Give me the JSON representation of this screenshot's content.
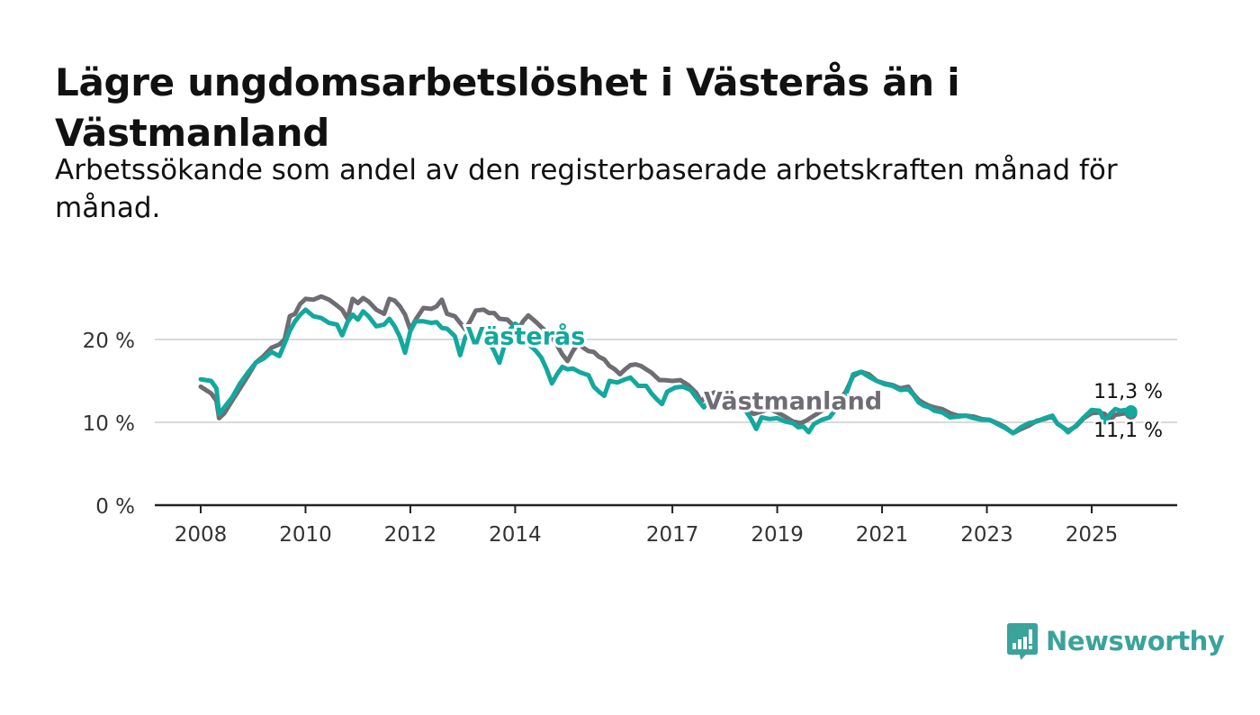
{
  "title": "Lägre ungdomsarbetslöshet i Västerås än i Västmanland",
  "subtitle": "Arbetssökande som andel av den registerbaserade arbetskraften månad för månad.",
  "brand": {
    "name": "Newsworthy",
    "color": "#3aa39b",
    "logo_icon": "bar-chart-speech-bubble-icon"
  },
  "chart_data": {
    "type": "line",
    "x_range": [
      2008,
      2026
    ],
    "ylim": [
      0,
      25
    ],
    "y_ticks": [
      {
        "value": 0,
        "label": "0 %"
      },
      {
        "value": 10,
        "label": "10 %"
      },
      {
        "value": 20,
        "label": "20 %"
      }
    ],
    "x_ticks": [
      {
        "value": 2008,
        "label": "2008"
      },
      {
        "value": 2010,
        "label": "2010"
      },
      {
        "value": 2012,
        "label": "2012"
      },
      {
        "value": 2014,
        "label": "2014"
      },
      {
        "value": 2017,
        "label": "2017"
      },
      {
        "value": 2019,
        "label": "2019"
      },
      {
        "value": 2021,
        "label": "2021"
      },
      {
        "value": 2023,
        "label": "2023"
      },
      {
        "value": 2025,
        "label": "2025"
      }
    ],
    "grid": true,
    "series": [
      {
        "name": "Västmanland",
        "color": "#6f6d73",
        "end_label": "11,1 %",
        "points": [
          [
            2008.0,
            14.3
          ],
          [
            2008.1,
            13.9
          ],
          [
            2008.2,
            13.5
          ],
          [
            2008.3,
            12.6
          ],
          [
            2008.35,
            10.5
          ],
          [
            2008.45,
            11.1
          ],
          [
            2008.6,
            12.6
          ],
          [
            2008.75,
            14.1
          ],
          [
            2008.9,
            15.6
          ],
          [
            2009.05,
            17.2
          ],
          [
            2009.2,
            18.0
          ],
          [
            2009.35,
            19.0
          ],
          [
            2009.5,
            19.4
          ],
          [
            2009.6,
            20.0
          ],
          [
            2009.7,
            22.8
          ],
          [
            2009.8,
            23.1
          ],
          [
            2009.9,
            24.3
          ],
          [
            2010.0,
            24.9
          ],
          [
            2010.15,
            24.8
          ],
          [
            2010.3,
            25.2
          ],
          [
            2010.45,
            24.8
          ],
          [
            2010.6,
            24.1
          ],
          [
            2010.7,
            23.6
          ],
          [
            2010.8,
            22.5
          ],
          [
            2010.9,
            24.9
          ],
          [
            2011.0,
            24.4
          ],
          [
            2011.1,
            25.0
          ],
          [
            2011.2,
            24.6
          ],
          [
            2011.35,
            23.6
          ],
          [
            2011.5,
            23.1
          ],
          [
            2011.6,
            24.9
          ],
          [
            2011.7,
            24.7
          ],
          [
            2011.8,
            24.0
          ],
          [
            2011.9,
            23.0
          ],
          [
            2012.0,
            21.2
          ],
          [
            2012.1,
            22.4
          ],
          [
            2012.25,
            23.8
          ],
          [
            2012.4,
            23.7
          ],
          [
            2012.5,
            24.0
          ],
          [
            2012.6,
            24.8
          ],
          [
            2012.7,
            23.1
          ],
          [
            2012.85,
            22.8
          ],
          [
            2012.95,
            22.0
          ],
          [
            2013.05,
            21.2
          ],
          [
            2013.15,
            22.3
          ],
          [
            2013.25,
            23.5
          ],
          [
            2013.4,
            23.6
          ],
          [
            2013.5,
            23.2
          ],
          [
            2013.6,
            23.2
          ],
          [
            2013.7,
            22.5
          ],
          [
            2013.85,
            22.4
          ],
          [
            2013.95,
            21.8
          ],
          [
            2014.05,
            21.0
          ],
          [
            2014.15,
            22.2
          ],
          [
            2014.25,
            22.9
          ],
          [
            2014.4,
            22.1
          ],
          [
            2014.5,
            21.5
          ],
          [
            2014.6,
            20.9
          ],
          [
            2014.7,
            20.3
          ],
          [
            2014.8,
            19.3
          ],
          [
            2014.9,
            18.2
          ],
          [
            2015.0,
            17.4
          ],
          [
            2015.1,
            18.6
          ],
          [
            2015.2,
            19.5
          ],
          [
            2015.3,
            19.0
          ],
          [
            2015.4,
            18.6
          ],
          [
            2015.5,
            18.5
          ],
          [
            2015.6,
            17.9
          ],
          [
            2015.7,
            17.6
          ],
          [
            2015.8,
            16.8
          ],
          [
            2015.9,
            16.4
          ],
          [
            2016.0,
            15.8
          ],
          [
            2016.1,
            16.4
          ],
          [
            2016.2,
            16.9
          ],
          [
            2016.3,
            17.0
          ],
          [
            2016.4,
            16.8
          ],
          [
            2016.5,
            16.4
          ],
          [
            2016.6,
            16.0
          ],
          [
            2016.75,
            15.1
          ],
          [
            2016.85,
            15.1
          ],
          [
            2017.0,
            15.0
          ],
          [
            2017.15,
            15.1
          ],
          [
            2017.3,
            14.5
          ],
          [
            2017.45,
            13.6
          ],
          [
            2017.55,
            12.5
          ],
          [
            2017.65,
            13.2
          ],
          [
            2017.8,
            13.6
          ],
          [
            2017.95,
            13.7
          ],
          [
            2018.1,
            13.3
          ],
          [
            2018.25,
            12.5
          ],
          [
            2018.4,
            11.6
          ],
          [
            2018.55,
            11.0
          ],
          [
            2018.7,
            11.3
          ],
          [
            2018.85,
            11.6
          ],
          [
            2019.0,
            11.2
          ],
          [
            2019.15,
            10.7
          ],
          [
            2019.3,
            10.1
          ],
          [
            2019.45,
            9.9
          ],
          [
            2019.55,
            10.2
          ],
          [
            2019.7,
            10.8
          ],
          [
            2019.85,
            11.4
          ],
          [
            2020.0,
            11.8
          ],
          [
            2020.15,
            12.5
          ],
          [
            2020.3,
            13.6
          ],
          [
            2020.45,
            15.6
          ],
          [
            2020.6,
            16.1
          ],
          [
            2020.75,
            15.8
          ],
          [
            2020.9,
            15.0
          ],
          [
            2021.05,
            14.7
          ],
          [
            2021.2,
            14.5
          ],
          [
            2021.35,
            14.1
          ],
          [
            2021.5,
            14.3
          ],
          [
            2021.6,
            13.4
          ],
          [
            2021.7,
            12.7
          ],
          [
            2021.8,
            12.3
          ],
          [
            2021.9,
            12.0
          ],
          [
            2022.0,
            11.8
          ],
          [
            2022.15,
            11.6
          ],
          [
            2022.3,
            11.1
          ],
          [
            2022.45,
            10.8
          ],
          [
            2022.6,
            10.8
          ],
          [
            2022.75,
            10.7
          ],
          [
            2022.9,
            10.4
          ],
          [
            2023.05,
            10.3
          ],
          [
            2023.2,
            9.9
          ],
          [
            2023.35,
            9.4
          ],
          [
            2023.5,
            8.7
          ],
          [
            2023.65,
            9.2
          ],
          [
            2023.8,
            9.6
          ],
          [
            2023.95,
            10.2
          ],
          [
            2024.1,
            10.4
          ],
          [
            2024.25,
            10.7
          ],
          [
            2024.35,
            9.8
          ],
          [
            2024.45,
            9.4
          ],
          [
            2024.55,
            9.0
          ],
          [
            2024.7,
            9.5
          ],
          [
            2024.85,
            10.5
          ],
          [
            2025.0,
            11.1
          ],
          [
            2025.15,
            11.2
          ],
          [
            2025.25,
            11.0
          ],
          [
            2025.35,
            10.3
          ],
          [
            2025.45,
            10.9
          ],
          [
            2025.55,
            11.0
          ],
          [
            2025.65,
            11.1
          ],
          [
            2025.75,
            11.1
          ]
        ]
      },
      {
        "name": "Västerås",
        "color": "#13a89e",
        "end_label": "11,3 %",
        "points": [
          [
            2008.0,
            15.2
          ],
          [
            2008.1,
            15.1
          ],
          [
            2008.2,
            15.0
          ],
          [
            2008.3,
            14.1
          ],
          [
            2008.35,
            11.0
          ],
          [
            2008.45,
            11.8
          ],
          [
            2008.6,
            13.0
          ],
          [
            2008.75,
            14.7
          ],
          [
            2008.9,
            16.0
          ],
          [
            2009.05,
            17.2
          ],
          [
            2009.2,
            17.7
          ],
          [
            2009.35,
            18.5
          ],
          [
            2009.5,
            18.0
          ],
          [
            2009.6,
            19.5
          ],
          [
            2009.7,
            21.1
          ],
          [
            2009.8,
            22.2
          ],
          [
            2009.9,
            23.0
          ],
          [
            2010.0,
            23.6
          ],
          [
            2010.15,
            22.8
          ],
          [
            2010.3,
            22.6
          ],
          [
            2010.45,
            22.0
          ],
          [
            2010.6,
            21.8
          ],
          [
            2010.7,
            20.5
          ],
          [
            2010.8,
            22.1
          ],
          [
            2010.9,
            23.0
          ],
          [
            2011.0,
            22.4
          ],
          [
            2011.1,
            23.4
          ],
          [
            2011.2,
            22.8
          ],
          [
            2011.35,
            21.6
          ],
          [
            2011.5,
            21.8
          ],
          [
            2011.6,
            22.5
          ],
          [
            2011.7,
            21.6
          ],
          [
            2011.8,
            20.3
          ],
          [
            2011.9,
            18.4
          ],
          [
            2012.0,
            21.0
          ],
          [
            2012.1,
            22.2
          ],
          [
            2012.25,
            22.2
          ],
          [
            2012.4,
            22.0
          ],
          [
            2012.5,
            22.1
          ],
          [
            2012.6,
            21.4
          ],
          [
            2012.7,
            21.3
          ],
          [
            2012.85,
            20.4
          ],
          [
            2012.95,
            18.1
          ],
          [
            2013.05,
            20.3
          ],
          [
            2013.15,
            21.0
          ],
          [
            2013.25,
            20.3
          ],
          [
            2013.4,
            20.0
          ],
          [
            2013.5,
            19.7
          ],
          [
            2013.6,
            18.6
          ],
          [
            2013.7,
            17.2
          ],
          [
            2013.8,
            19.4
          ],
          [
            2013.9,
            21.2
          ],
          [
            2014.0,
            21.9
          ],
          [
            2014.1,
            21.5
          ],
          [
            2014.2,
            20.5
          ],
          [
            2014.3,
            19.2
          ],
          [
            2014.4,
            18.6
          ],
          [
            2014.5,
            17.8
          ],
          [
            2014.6,
            16.4
          ],
          [
            2014.7,
            14.7
          ],
          [
            2014.8,
            15.8
          ],
          [
            2014.9,
            16.7
          ],
          [
            2015.0,
            16.4
          ],
          [
            2015.1,
            16.5
          ],
          [
            2015.25,
            16.0
          ],
          [
            2015.4,
            15.7
          ],
          [
            2015.5,
            14.3
          ],
          [
            2015.6,
            13.7
          ],
          [
            2015.7,
            13.2
          ],
          [
            2015.8,
            15.0
          ],
          [
            2015.95,
            14.8
          ],
          [
            2016.1,
            15.2
          ],
          [
            2016.2,
            15.4
          ],
          [
            2016.35,
            14.4
          ],
          [
            2016.5,
            14.4
          ],
          [
            2016.6,
            13.5
          ],
          [
            2016.7,
            12.8
          ],
          [
            2016.8,
            12.2
          ],
          [
            2016.9,
            13.7
          ],
          [
            2017.05,
            14.2
          ],
          [
            2017.2,
            14.3
          ],
          [
            2017.35,
            13.9
          ],
          [
            2017.5,
            12.6
          ],
          [
            2017.6,
            11.8
          ],
          [
            2017.7,
            12.6
          ],
          [
            2017.85,
            12.9
          ],
          [
            2018.0,
            12.7
          ],
          [
            2018.15,
            12.6
          ],
          [
            2018.3,
            12.3
          ],
          [
            2018.4,
            11.4
          ],
          [
            2018.5,
            10.4
          ],
          [
            2018.6,
            9.2
          ],
          [
            2018.7,
            10.6
          ],
          [
            2018.85,
            10.4
          ],
          [
            2019.0,
            10.5
          ],
          [
            2019.15,
            10.1
          ],
          [
            2019.3,
            9.9
          ],
          [
            2019.4,
            9.4
          ],
          [
            2019.5,
            9.5
          ],
          [
            2019.6,
            8.8
          ],
          [
            2019.7,
            9.8
          ],
          [
            2019.85,
            10.3
          ],
          [
            2020.0,
            10.6
          ],
          [
            2020.15,
            11.9
          ],
          [
            2020.3,
            13.2
          ],
          [
            2020.45,
            15.8
          ],
          [
            2020.6,
            16.1
          ],
          [
            2020.75,
            15.5
          ],
          [
            2020.9,
            15.0
          ],
          [
            2021.05,
            14.6
          ],
          [
            2021.2,
            14.4
          ],
          [
            2021.35,
            13.9
          ],
          [
            2021.5,
            14.0
          ],
          [
            2021.6,
            13.3
          ],
          [
            2021.7,
            12.4
          ],
          [
            2021.8,
            12.0
          ],
          [
            2021.9,
            11.8
          ],
          [
            2022.0,
            11.4
          ],
          [
            2022.15,
            11.2
          ],
          [
            2022.3,
            10.6
          ],
          [
            2022.45,
            10.7
          ],
          [
            2022.6,
            10.8
          ],
          [
            2022.75,
            10.5
          ],
          [
            2022.9,
            10.3
          ],
          [
            2023.05,
            10.3
          ],
          [
            2023.2,
            9.8
          ],
          [
            2023.35,
            9.3
          ],
          [
            2023.5,
            8.7
          ],
          [
            2023.65,
            9.4
          ],
          [
            2023.8,
            9.9
          ],
          [
            2023.95,
            10.1
          ],
          [
            2024.1,
            10.5
          ],
          [
            2024.25,
            10.8
          ],
          [
            2024.35,
            9.8
          ],
          [
            2024.45,
            9.4
          ],
          [
            2024.55,
            8.8
          ],
          [
            2024.7,
            9.6
          ],
          [
            2024.85,
            10.6
          ],
          [
            2025.0,
            11.5
          ],
          [
            2025.15,
            11.4
          ],
          [
            2025.25,
            10.0
          ],
          [
            2025.35,
            11.0
          ],
          [
            2025.45,
            11.6
          ],
          [
            2025.55,
            11.4
          ],
          [
            2025.65,
            11.5
          ],
          [
            2025.75,
            11.3
          ]
        ]
      }
    ],
    "annotations": [
      {
        "text": "Västerås",
        "series": "Västerås",
        "x": 2014.2,
        "y": 19.4
      },
      {
        "text": "Västmanland",
        "series": "Västmanland",
        "x": 2019.3,
        "y": 11.6
      }
    ]
  }
}
